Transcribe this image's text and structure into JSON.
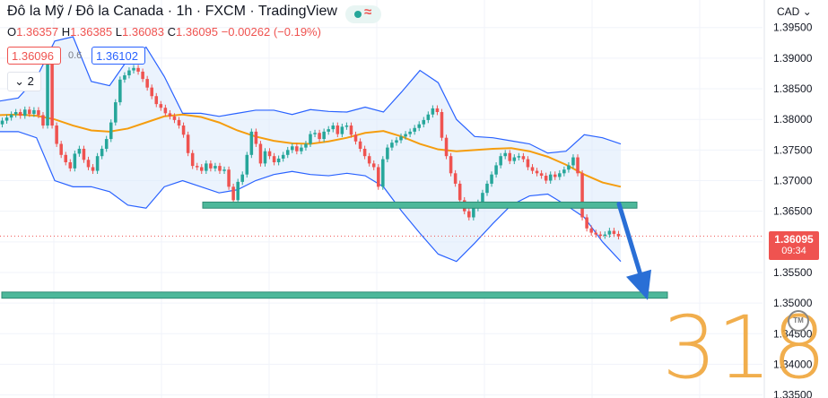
{
  "header": {
    "title": "Đô la Mỹ / Đô la Canada",
    "interval": "1h",
    "exchange": "FXCM",
    "platform": "TradingView",
    "sep": "·"
  },
  "ohlc": {
    "o_label": "O",
    "o": "1.36357",
    "h_label": "H",
    "h": "1.36385",
    "l_label": "L",
    "l": "1.36083",
    "c_label": "C",
    "c": "1.36095",
    "change": "−0.00262 (−0.19%)"
  },
  "trade": {
    "sell": "1.36096",
    "spread": "0.6",
    "buy": "1.36102"
  },
  "interval_selector": {
    "label": "2",
    "icon": "chevron-down-icon"
  },
  "price_axis": {
    "currency": "CAD"
  },
  "price_tag": {
    "price": "1.36095",
    "countdown": "09:34"
  },
  "watermark": {
    "text": "318",
    "mark": "TM"
  },
  "colors": {
    "up": "#26a69a",
    "down": "#ef5350",
    "bands": "#2962ff",
    "band_fill": "#dbeafc",
    "ma": "#f59d0e",
    "zone": "#4db89a",
    "arrow": "#2a6fd6"
  },
  "chart_data": {
    "type": "candlestick",
    "title": "Đô la Mỹ / Đô la Canada · 1h · FXCM",
    "y_ticks": [
      "1.39500",
      "1.39000",
      "1.38500",
      "1.38000",
      "1.37500",
      "1.37000",
      "1.36500",
      "1.36000",
      "1.35500",
      "1.35000",
      "1.34500",
      "1.34000",
      "1.33500"
    ],
    "ylim": [
      1.3345,
      1.3995
    ],
    "grid": true,
    "last_price": 1.36095,
    "zones": [
      {
        "name": "resistance-support",
        "from": 1.3655,
        "to": 1.3665
      },
      {
        "name": "target",
        "from": 1.3508,
        "to": 1.3518
      }
    ],
    "arrow": {
      "from": 1.3662,
      "to": 1.3505
    },
    "close": [
      1.3798,
      1.3803,
      1.3808,
      1.3812,
      1.3806,
      1.3816,
      1.3809,
      1.3815,
      1.3807,
      1.379,
      1.3895,
      1.379,
      1.376,
      1.3742,
      1.373,
      1.372,
      1.3744,
      1.3752,
      1.3734,
      1.3722,
      1.3716,
      1.374,
      1.3752,
      1.3768,
      1.3795,
      1.3828,
      1.3865,
      1.3872,
      1.388,
      1.3884,
      1.3878,
      1.3866,
      1.3852,
      1.3838,
      1.3825,
      1.3819,
      1.381,
      1.3805,
      1.3799,
      1.379,
      1.3775,
      1.3745,
      1.3724,
      1.3722,
      1.3716,
      1.3728,
      1.372,
      1.3724,
      1.3716,
      1.3718,
      1.369,
      1.3668,
      1.3698,
      1.371,
      1.3742,
      1.378,
      1.376,
      1.3728,
      1.3748,
      1.374,
      1.373,
      1.3736,
      1.3742,
      1.375,
      1.3756,
      1.3748,
      1.3754,
      1.376,
      1.3776,
      1.3778,
      1.3768,
      1.378,
      1.3784,
      1.379,
      1.3776,
      1.3788,
      1.379,
      1.3775,
      1.3764,
      1.3752,
      1.374,
      1.3728,
      1.3722,
      1.369,
      1.3735,
      1.3754,
      1.3762,
      1.3766,
      1.3772,
      1.3776,
      1.378,
      1.3786,
      1.3792,
      1.3799,
      1.3808,
      1.3818,
      1.3812,
      1.377,
      1.374,
      1.3712,
      1.3695,
      1.3668,
      1.365,
      1.364,
      1.3655,
      1.3664,
      1.368,
      1.3695,
      1.371,
      1.3725,
      1.374,
      1.3745,
      1.3732,
      1.3738,
      1.374,
      1.3735,
      1.3722,
      1.3716,
      1.3712,
      1.3708,
      1.37,
      1.371,
      1.3706,
      1.3712,
      1.3718,
      1.3725,
      1.3738,
      1.3712,
      1.364,
      1.3622,
      1.3615,
      1.3612,
      1.361,
      1.3612,
      1.3618,
      1.3613,
      1.3609
    ],
    "ma": [
      1.3807,
      1.3808,
      1.3806,
      1.38,
      1.379,
      1.3782,
      1.378,
      1.3785,
      1.3795,
      1.3805,
      1.3808,
      1.3804,
      1.3795,
      1.3782,
      1.3772,
      1.3765,
      1.3761,
      1.376,
      1.3764,
      1.377,
      1.3778,
      1.3781,
      1.3772,
      1.376,
      1.3751,
      1.3748,
      1.375,
      1.3752,
      1.3753,
      1.3748,
      1.3739,
      1.3726,
      1.371,
      1.3697,
      1.369
    ],
    "bb_upper": [
      1.383,
      1.3835,
      1.3868,
      1.3928,
      1.3935,
      1.3862,
      1.3855,
      1.3898,
      1.3918,
      1.387,
      1.381,
      1.381,
      1.3805,
      1.381,
      1.3815,
      1.3815,
      1.3808,
      1.3816,
      1.3813,
      1.3812,
      1.382,
      1.3812,
      1.3845,
      1.388,
      1.386,
      1.38,
      1.3772,
      1.377,
      1.3765,
      1.376,
      1.3745,
      1.3748,
      1.3775,
      1.377,
      1.376
    ],
    "bb_lower": [
      1.378,
      1.378,
      1.377,
      1.37,
      1.369,
      1.369,
      1.3682,
      1.366,
      1.3655,
      1.369,
      1.37,
      1.369,
      1.368,
      1.3685,
      1.37,
      1.371,
      1.3715,
      1.371,
      1.3708,
      1.3712,
      1.3708,
      1.369,
      1.365,
      1.3614,
      1.358,
      1.3568,
      1.3598,
      1.363,
      1.366,
      1.3675,
      1.3678,
      1.366,
      1.364,
      1.36,
      1.3568
    ]
  }
}
